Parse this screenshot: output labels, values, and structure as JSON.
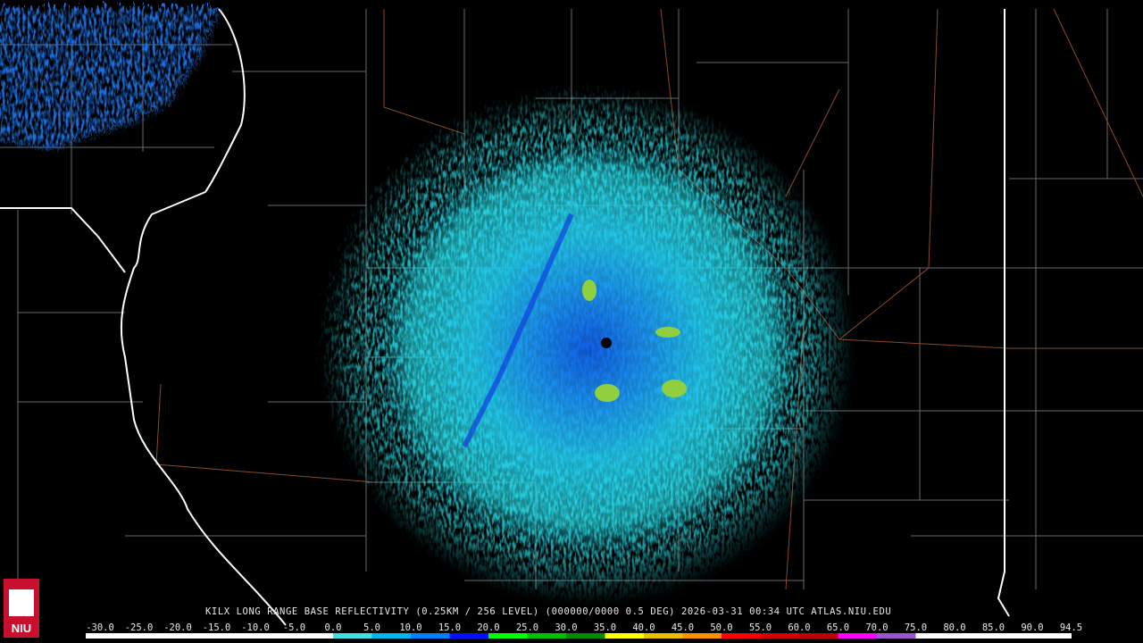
{
  "caption": "KILX LONG RANGE BASE REFLECTIVITY (0.25KM / 256 LEVEL) (000000/0000 0.5 DEG) 2026-03-31 00:34 UTC  ATLAS.NIU.EDU",
  "logo": "NIU",
  "legend": {
    "labels": [
      "-30.0",
      "-25.0",
      "-20.0",
      "-15.0",
      "-10.0",
      "-5.0",
      "0.0",
      "5.0",
      "10.0",
      "15.0",
      "20.0",
      "25.0",
      "30.0",
      "35.0",
      "40.0",
      "45.0",
      "50.0",
      "55.0",
      "60.0",
      "65.0",
      "70.0",
      "75.0",
      "80.0",
      "85.0",
      "90.0",
      "94.5"
    ],
    "colors": [
      "#ffffff",
      "#ffffff",
      "#ffffff",
      "#ffffff",
      "#ffffff",
      "#ffffff",
      "#3ee0e0",
      "#00b8f0",
      "#0080ff",
      "#0010ff",
      "#00ff00",
      "#00c000",
      "#008a00",
      "#ffff00",
      "#e8c000",
      "#ff9000",
      "#ff0000",
      "#d40000",
      "#c00000",
      "#ff00ff",
      "#9955c9",
      "#ffffff",
      "#ffffff",
      "#ffffff",
      "#ffffff"
    ]
  }
}
